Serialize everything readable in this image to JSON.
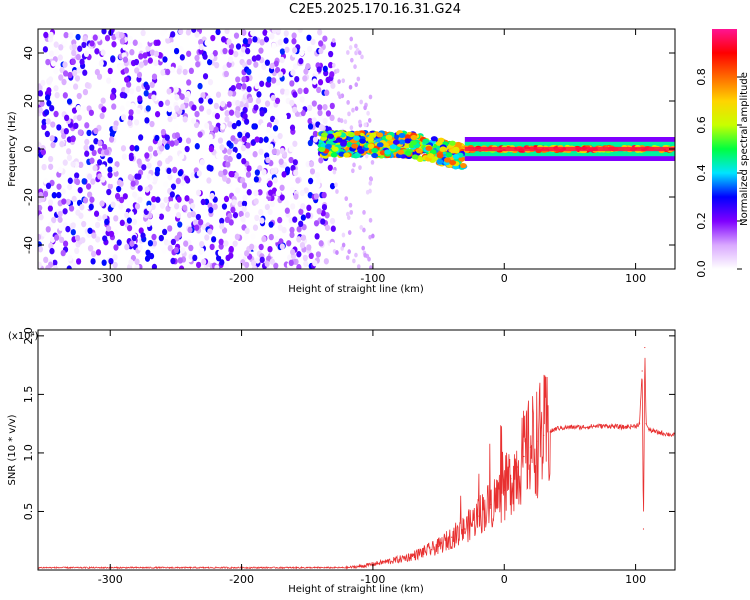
{
  "title": "C2E5.2025.170.16.31.G24",
  "chart_data": [
    {
      "type": "heatmap",
      "xlabel": "Height of straight line (km)",
      "ylabel": "Frequency (Hz)",
      "xlim": [
        -355,
        130
      ],
      "ylim": [
        -50,
        50
      ],
      "xticks": [
        -300,
        -200,
        -100,
        0,
        100
      ],
      "yticks": [
        -40,
        -20,
        0,
        20,
        40
      ],
      "grid": false,
      "colorbar": {
        "label": "Normalized spectral amplitude",
        "range": [
          0.0,
          1.0
        ],
        "ticks": [
          0.0,
          0.2,
          0.4,
          0.6,
          0.8
        ],
        "colors": [
          "#ffffff",
          "#d9a8ff",
          "#7f00ff",
          "#0000ff",
          "#00e5ff",
          "#00ff40",
          "#c8ff00",
          "#ffd400",
          "#ff6a00",
          "#ff0000",
          "#ff1493"
        ]
      },
      "regions": [
        {
          "x": [
            -355,
            -130
          ],
          "y": [
            -50,
            50
          ],
          "amplitude": 0.15,
          "pattern": "scattered noise"
        },
        {
          "x": [
            -140,
            -30
          ],
          "y": [
            -8,
            10
          ],
          "amplitude": 0.6,
          "pattern": "chirping band"
        },
        {
          "x": [
            -30,
            130
          ],
          "y": [
            -2,
            2
          ],
          "amplitude": 0.95,
          "pattern": "carrier line"
        }
      ]
    },
    {
      "type": "line",
      "xlabel": "Height of straight line (km)",
      "ylabel": "SNR (10 * v/v)",
      "yscale_label": "(x10⁴)",
      "xlim": [
        -355,
        130
      ],
      "ylim": [
        0,
        2.05
      ],
      "xticks": [
        -300,
        -200,
        -100,
        0,
        100
      ],
      "yticks": [
        0.5,
        1.0,
        1.5,
        2.0
      ],
      "grid": false,
      "series": [
        {
          "color": "#e83030",
          "x": [
            -355,
            -300,
            -250,
            -200,
            -150,
            -120,
            -110,
            -100,
            -90,
            -80,
            -70,
            -60,
            -50,
            -40,
            -30,
            -25,
            -20,
            -15,
            -10,
            -5,
            0,
            5,
            10,
            15,
            20,
            25,
            30,
            35,
            40,
            50,
            60,
            70,
            80,
            90,
            100,
            103,
            105,
            106,
            107,
            108,
            110,
            115,
            120,
            125,
            130
          ],
          "y": [
            0.02,
            0.02,
            0.02,
            0.02,
            0.02,
            0.02,
            0.03,
            0.05,
            0.07,
            0.09,
            0.12,
            0.16,
            0.2,
            0.28,
            0.35,
            0.4,
            0.46,
            0.52,
            0.56,
            0.62,
            0.68,
            0.78,
            0.88,
            0.97,
            1.05,
            1.1,
            1.15,
            1.18,
            1.21,
            1.22,
            1.22,
            1.23,
            1.23,
            1.22,
            1.23,
            1.25,
            1.7,
            0.35,
            1.9,
            1.25,
            1.2,
            1.18,
            1.17,
            1.16,
            1.15
          ]
        }
      ],
      "annotations": [
        {
          "x": -25,
          "y": 1.32,
          "text": ""
        },
        {
          "x": -2,
          "y": 1.38,
          "text": ""
        }
      ]
    }
  ]
}
